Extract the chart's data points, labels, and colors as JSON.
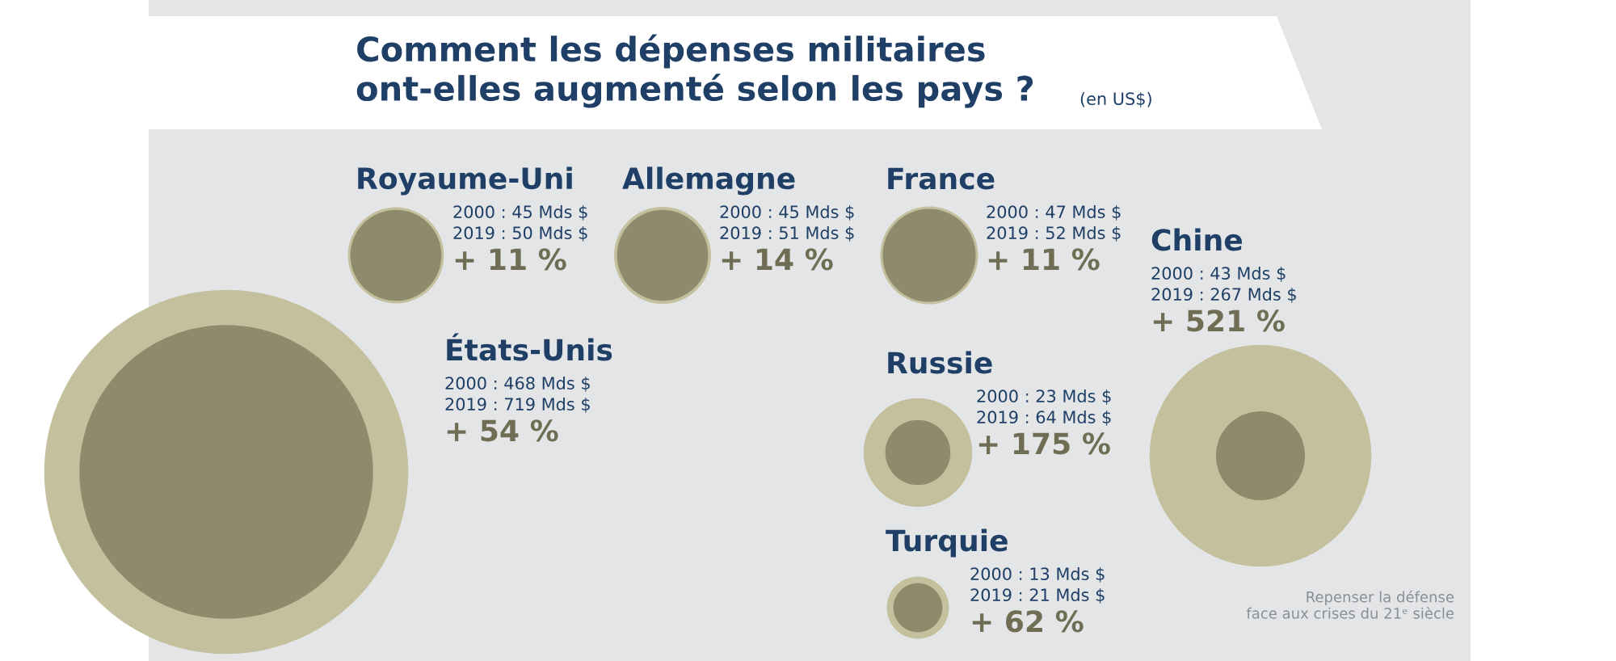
{
  "chart_data": {
    "type": "other",
    "title": "Comment les dépenses militaires\nont-elles augmenté selon les pays ?",
    "subtitle": "(en US$)",
    "categories": [
      "Royaume-Uni",
      "Allemagne",
      "France",
      "Chine",
      "États-Unis",
      "Russie",
      "Turquie"
    ],
    "series": [
      {
        "color": "#8e8b6c",
        "values": [
          45,
          45,
          47,
          43,
          468,
          23,
          13
        ],
        "value_labels": [
          "2000 : 45 Mds $",
          "2000 : 45 Mds $",
          "2000 : 47 Mds $",
          "2000 : 43 Mds $",
          "2000 : 468 Mds $",
          "2000 : 23 Mds $",
          "2000 : 13 Mds $"
        ]
      },
      {
        "color": "#c4bf9d",
        "values": [
          50,
          51,
          52,
          267,
          719,
          64,
          21
        ],
        "value_labels": [
          "2019 : 50 Mds $",
          "2019 : 51 Mds $",
          "2019 : 52 Mds $",
          "2019 : 267 Mds $",
          "2019 : 719 Mds $",
          "2019 : 64 Mds $",
          "2019 : 21 Mds $"
        ]
      },
      {
        "color": "#6f6e55",
        "values": [
          11,
          14,
          11,
          521,
          54,
          175,
          62
        ],
        "value_labels": [
          "+ 11 %",
          "+ 14 %",
          "+ 11 %",
          "+ 521 %",
          "+ 54 %",
          "+ 175 %",
          "+ 62 %"
        ]
      }
    ],
    "annotations": [
      "Repenser la défense\nface aux crises du 21ᵉ siècle"
    ]
  }
}
